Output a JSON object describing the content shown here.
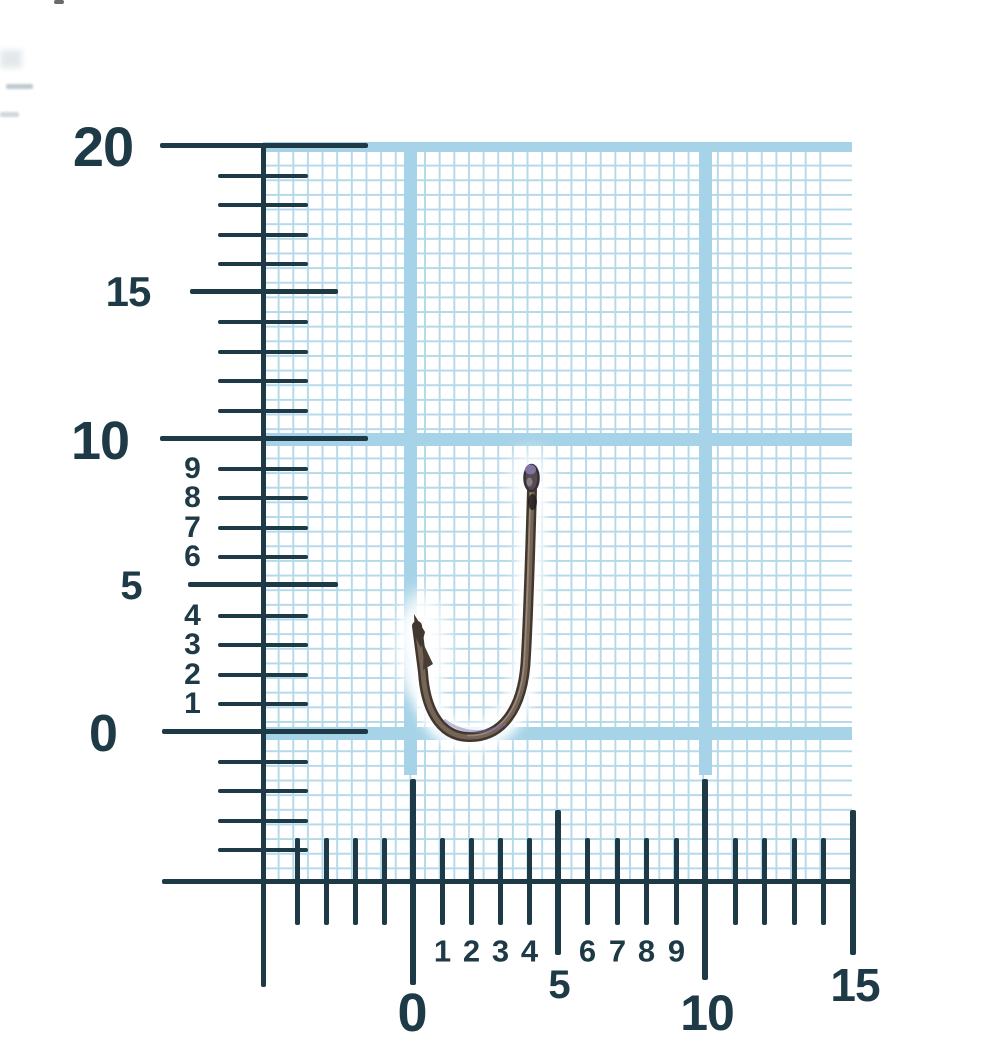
{
  "left_ruler": {
    "unit_labels_major": [
      "20",
      "15",
      "10",
      "5",
      "0"
    ],
    "unit_labels_minor": [
      "9",
      "8",
      "7",
      "6",
      "4",
      "3",
      "2",
      "1"
    ]
  },
  "bottom_ruler": {
    "unit_labels_major": [
      "0",
      "5",
      "10",
      "15"
    ],
    "unit_labels_minor": [
      "1",
      "2",
      "3",
      "4",
      "6",
      "7",
      "8",
      "9"
    ]
  },
  "object": {
    "name": "fishing-hook"
  },
  "colors": {
    "ink": "#1e3a46",
    "paper": "#ffffff",
    "grid_minor": "#b6d9ea",
    "grid_major_band": "#a7d3e8",
    "hook_dark": "#42372f",
    "hook_mid": "#786759",
    "hook_highlight": "#ab9c8e",
    "hook_eye_purple": "#8478a7"
  }
}
